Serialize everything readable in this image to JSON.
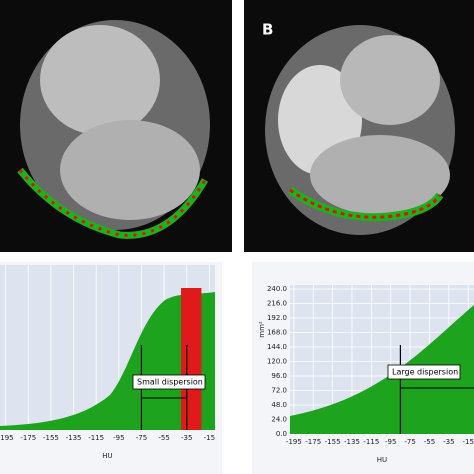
{
  "panels": [
    {
      "x_label": "HU",
      "annotation": "Small dispersion",
      "xlim": [
        -200,
        -10
      ],
      "xticks": [
        -195,
        -175,
        -155,
        -135,
        -115,
        -95,
        -75,
        -55,
        -35,
        -15
      ]
    },
    {
      "label": "B",
      "x_label": "HU",
      "y_label": "mm²",
      "annotation": "Large dispersion",
      "xlim": [
        -199,
        -9
      ],
      "ylim": [
        0,
        240
      ],
      "xticks": [
        -195,
        -175,
        -155,
        -135,
        -115,
        -95,
        -75,
        -55,
        -35,
        -15
      ],
      "yticks": [
        {
          "value": 0,
          "label": "0.0"
        },
        {
          "value": 24,
          "label": "24.0"
        },
        {
          "value": 48,
          "label": "48.0"
        },
        {
          "value": 72,
          "label": "72.0"
        },
        {
          "value": 96,
          "label": "96.0"
        },
        {
          "value": 120,
          "label": "120.0"
        },
        {
          "value": 144,
          "label": "144.0"
        },
        {
          "value": 168,
          "label": "168.0"
        },
        {
          "value": 192,
          "label": "192.0"
        },
        {
          "value": 216,
          "label": "216.0"
        },
        {
          "value": 240,
          "label": "240.0"
        }
      ]
    }
  ]
}
